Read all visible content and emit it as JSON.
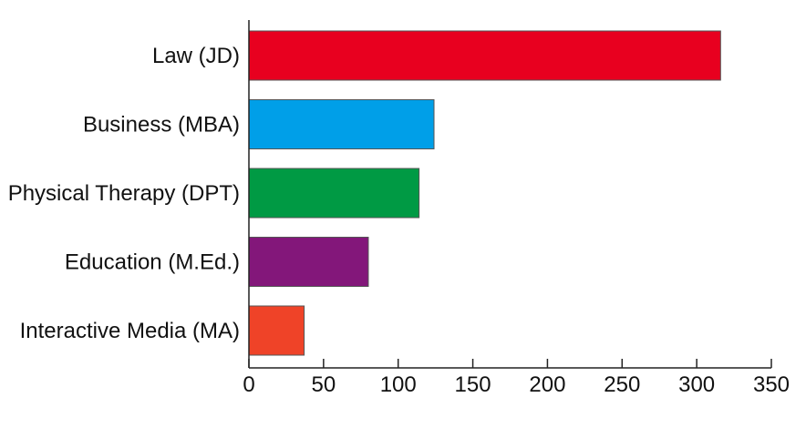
{
  "chart_data": {
    "type": "bar",
    "orientation": "horizontal",
    "title": "",
    "xlabel": "",
    "ylabel": "",
    "categories": [
      "Law (JD)",
      "Business (MBA)",
      "Physical Therapy (DPT)",
      "Education (M.Ed.)",
      "Interactive Media (MA)"
    ],
    "values": [
      316,
      124,
      114,
      80,
      37
    ],
    "colors": [
      "#e8001f",
      "#009fe8",
      "#009a44",
      "#83177a",
      "#ef4328"
    ],
    "xlim": [
      0,
      350
    ],
    "xticks": [
      "0",
      "50",
      "100",
      "150",
      "200",
      "250",
      "300",
      "350"
    ],
    "grid": false,
    "legend": "none"
  }
}
